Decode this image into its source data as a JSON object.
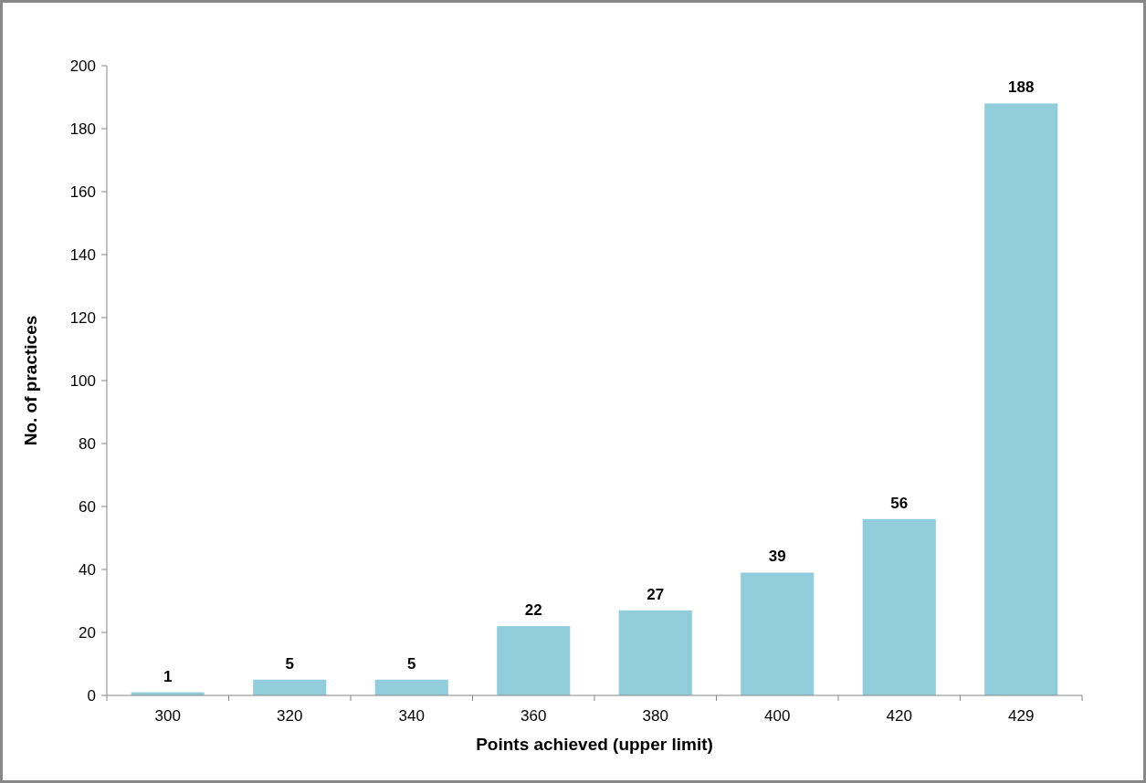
{
  "chart_data": {
    "type": "bar",
    "xlabel": "Points achieved (upper limit)",
    "ylabel": "No. of practices",
    "categories": [
      "300",
      "320",
      "340",
      "360",
      "380",
      "400",
      "420",
      "429"
    ],
    "values": [
      1,
      5,
      5,
      22,
      27,
      39,
      56,
      188
    ],
    "color": "#92cddc",
    "ylim": [
      0,
      200
    ],
    "yticks": [
      0,
      20,
      40,
      60,
      80,
      100,
      120,
      140,
      160,
      180,
      200
    ],
    "data_labels": true,
    "grid": false
  }
}
